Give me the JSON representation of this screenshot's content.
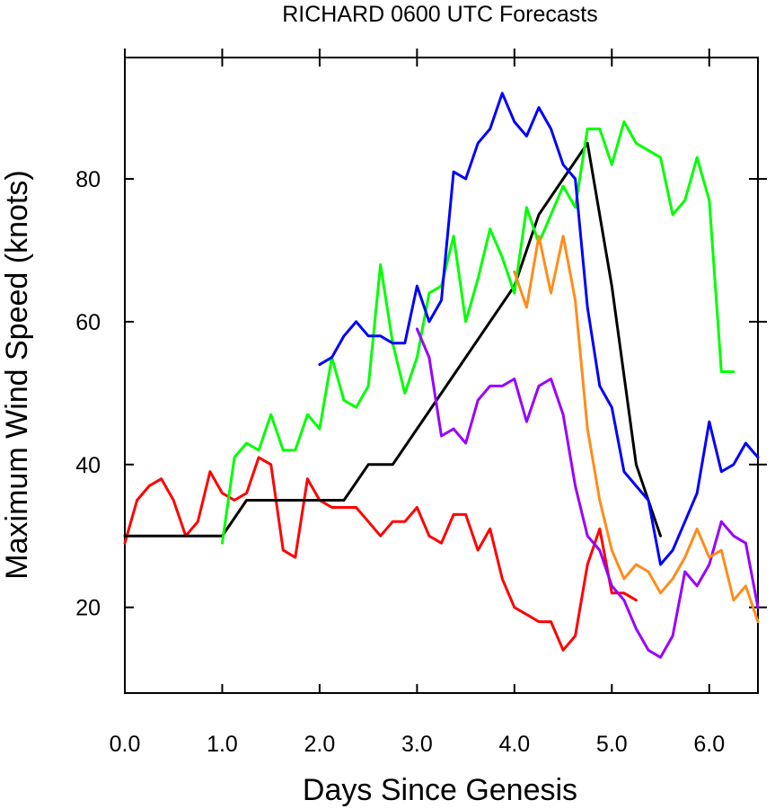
{
  "chart_data": {
    "type": "line",
    "title": "RICHARD 0600 UTC Forecasts",
    "xlabel": "Days Since Genesis",
    "ylabel": "Maximum Wind Speed (knots)",
    "xlim": [
      0,
      6.5
    ],
    "ylim": [
      8,
      97
    ],
    "x_ticks": [
      0,
      1,
      2,
      3,
      4,
      5,
      6
    ],
    "x_tick_labels": [
      "0.0",
      "1.0",
      "2.0",
      "3.0",
      "4.0",
      "5.0",
      "6.0"
    ],
    "y_ticks": [
      20,
      40,
      60,
      80
    ],
    "y_tick_labels": [
      "20",
      "40",
      "60",
      "80"
    ],
    "grid": false,
    "legend": "none",
    "series": [
      {
        "color": "#ff0000",
        "x": [
          0,
          0.125,
          0.25,
          0.375,
          0.5,
          0.625,
          0.75,
          0.875,
          1.0,
          1.125,
          1.25,
          1.375,
          1.5,
          1.625,
          1.75,
          1.875,
          2.0,
          2.125,
          2.25,
          2.375,
          2.5,
          2.625,
          2.75,
          2.875,
          3.0,
          3.125,
          3.25,
          3.375,
          3.5,
          3.625,
          3.75,
          3.875,
          4.0,
          4.125,
          4.25,
          4.375,
          4.5,
          4.625,
          4.75,
          4.875,
          5.0,
          5.125,
          5.25
        ],
        "y": [
          29,
          35,
          37,
          38,
          35,
          30,
          32,
          39,
          36,
          35,
          36,
          41,
          40,
          28,
          27,
          38,
          35,
          34,
          34,
          34,
          32,
          30,
          32,
          32,
          34,
          30,
          29,
          33,
          33,
          28,
          31,
          24,
          20,
          19,
          18,
          18,
          14,
          16,
          26,
          31,
          22,
          22,
          21
        ]
      },
      {
        "color": "#000000",
        "x": [
          0,
          1.0,
          1.25,
          1.5,
          1.75,
          2.0,
          2.25,
          2.5,
          2.75,
          3.0,
          3.25,
          3.5,
          3.75,
          4.0,
          4.25,
          4.5,
          4.75,
          5.0,
          5.25,
          5.5
        ],
        "y": [
          30,
          30,
          35,
          35,
          35,
          35,
          35,
          40,
          40,
          45,
          50,
          55,
          60,
          65,
          75,
          80,
          85,
          65,
          40,
          30
        ]
      },
      {
        "color": "#00ff00",
        "x": [
          1.0,
          1.125,
          1.25,
          1.375,
          1.5,
          1.625,
          1.75,
          1.875,
          2.0,
          2.125,
          2.25,
          2.375,
          2.5,
          2.625,
          2.75,
          2.875,
          3.0,
          3.125,
          3.25,
          3.375,
          3.5,
          3.625,
          3.75,
          3.875,
          4.0,
          4.125,
          4.25,
          4.375,
          4.5,
          4.625,
          4.75,
          4.875,
          5.0,
          5.125,
          5.25,
          5.375,
          5.5,
          5.625,
          5.75,
          5.875,
          6.0,
          6.125,
          6.25
        ],
        "y": [
          29,
          41,
          43,
          42,
          47,
          42,
          42,
          47,
          45,
          55,
          49,
          48,
          51,
          68,
          57,
          50,
          55,
          64,
          65,
          72,
          60,
          66,
          73,
          69,
          64,
          76,
          71,
          75,
          79,
          76,
          87,
          87,
          82,
          88,
          85,
          84,
          83,
          75,
          77,
          83,
          77,
          53,
          53
        ]
      },
      {
        "color": "#0000ff",
        "x": [
          2.0,
          2.125,
          2.25,
          2.375,
          2.5,
          2.625,
          2.75,
          2.875,
          3.0,
          3.125,
          3.25,
          3.375,
          3.5,
          3.625,
          3.75,
          3.875,
          4.0,
          4.125,
          4.25,
          4.375,
          4.5,
          4.625,
          4.75,
          4.875,
          5.0,
          5.125,
          5.25,
          5.375,
          5.5,
          5.625,
          5.75,
          5.875,
          6.0,
          6.125,
          6.25,
          6.375,
          6.5
        ],
        "y": [
          54,
          55,
          58,
          60,
          58,
          58,
          57,
          57,
          65,
          60,
          63,
          81,
          80,
          85,
          87,
          92,
          88,
          86,
          90,
          87,
          82,
          80,
          62,
          51,
          48,
          39,
          37,
          35,
          26,
          28,
          32,
          36,
          46,
          39,
          40,
          43,
          41
        ]
      },
      {
        "color": "#9900ff",
        "x": [
          3.0,
          3.125,
          3.25,
          3.375,
          3.5,
          3.625,
          3.75,
          3.875,
          4.0,
          4.125,
          4.25,
          4.375,
          4.5,
          4.625,
          4.75,
          4.875,
          5.0,
          5.125,
          5.25,
          5.375,
          5.5,
          5.625,
          5.75,
          5.875,
          6.0,
          6.125,
          6.25,
          6.375,
          6.5
        ],
        "y": [
          59,
          55,
          44,
          45,
          43,
          49,
          51,
          51,
          52,
          46,
          51,
          52,
          47,
          37,
          30,
          28,
          23,
          21,
          17,
          14,
          13,
          16,
          25,
          23,
          26,
          32,
          30,
          29,
          20
        ]
      },
      {
        "color": "#ff8c1a",
        "x": [
          4.0,
          4.125,
          4.25,
          4.375,
          4.5,
          4.625,
          4.75,
          4.875,
          5.0,
          5.125,
          5.25,
          5.375,
          5.5,
          5.625,
          5.75,
          5.875,
          6.0,
          6.125,
          6.25,
          6.375,
          6.5
        ],
        "y": [
          67,
          62,
          72,
          64,
          72,
          63,
          45,
          35,
          28,
          24,
          26,
          25,
          22,
          24,
          27,
          31,
          27,
          28,
          21,
          23,
          18
        ]
      }
    ]
  }
}
